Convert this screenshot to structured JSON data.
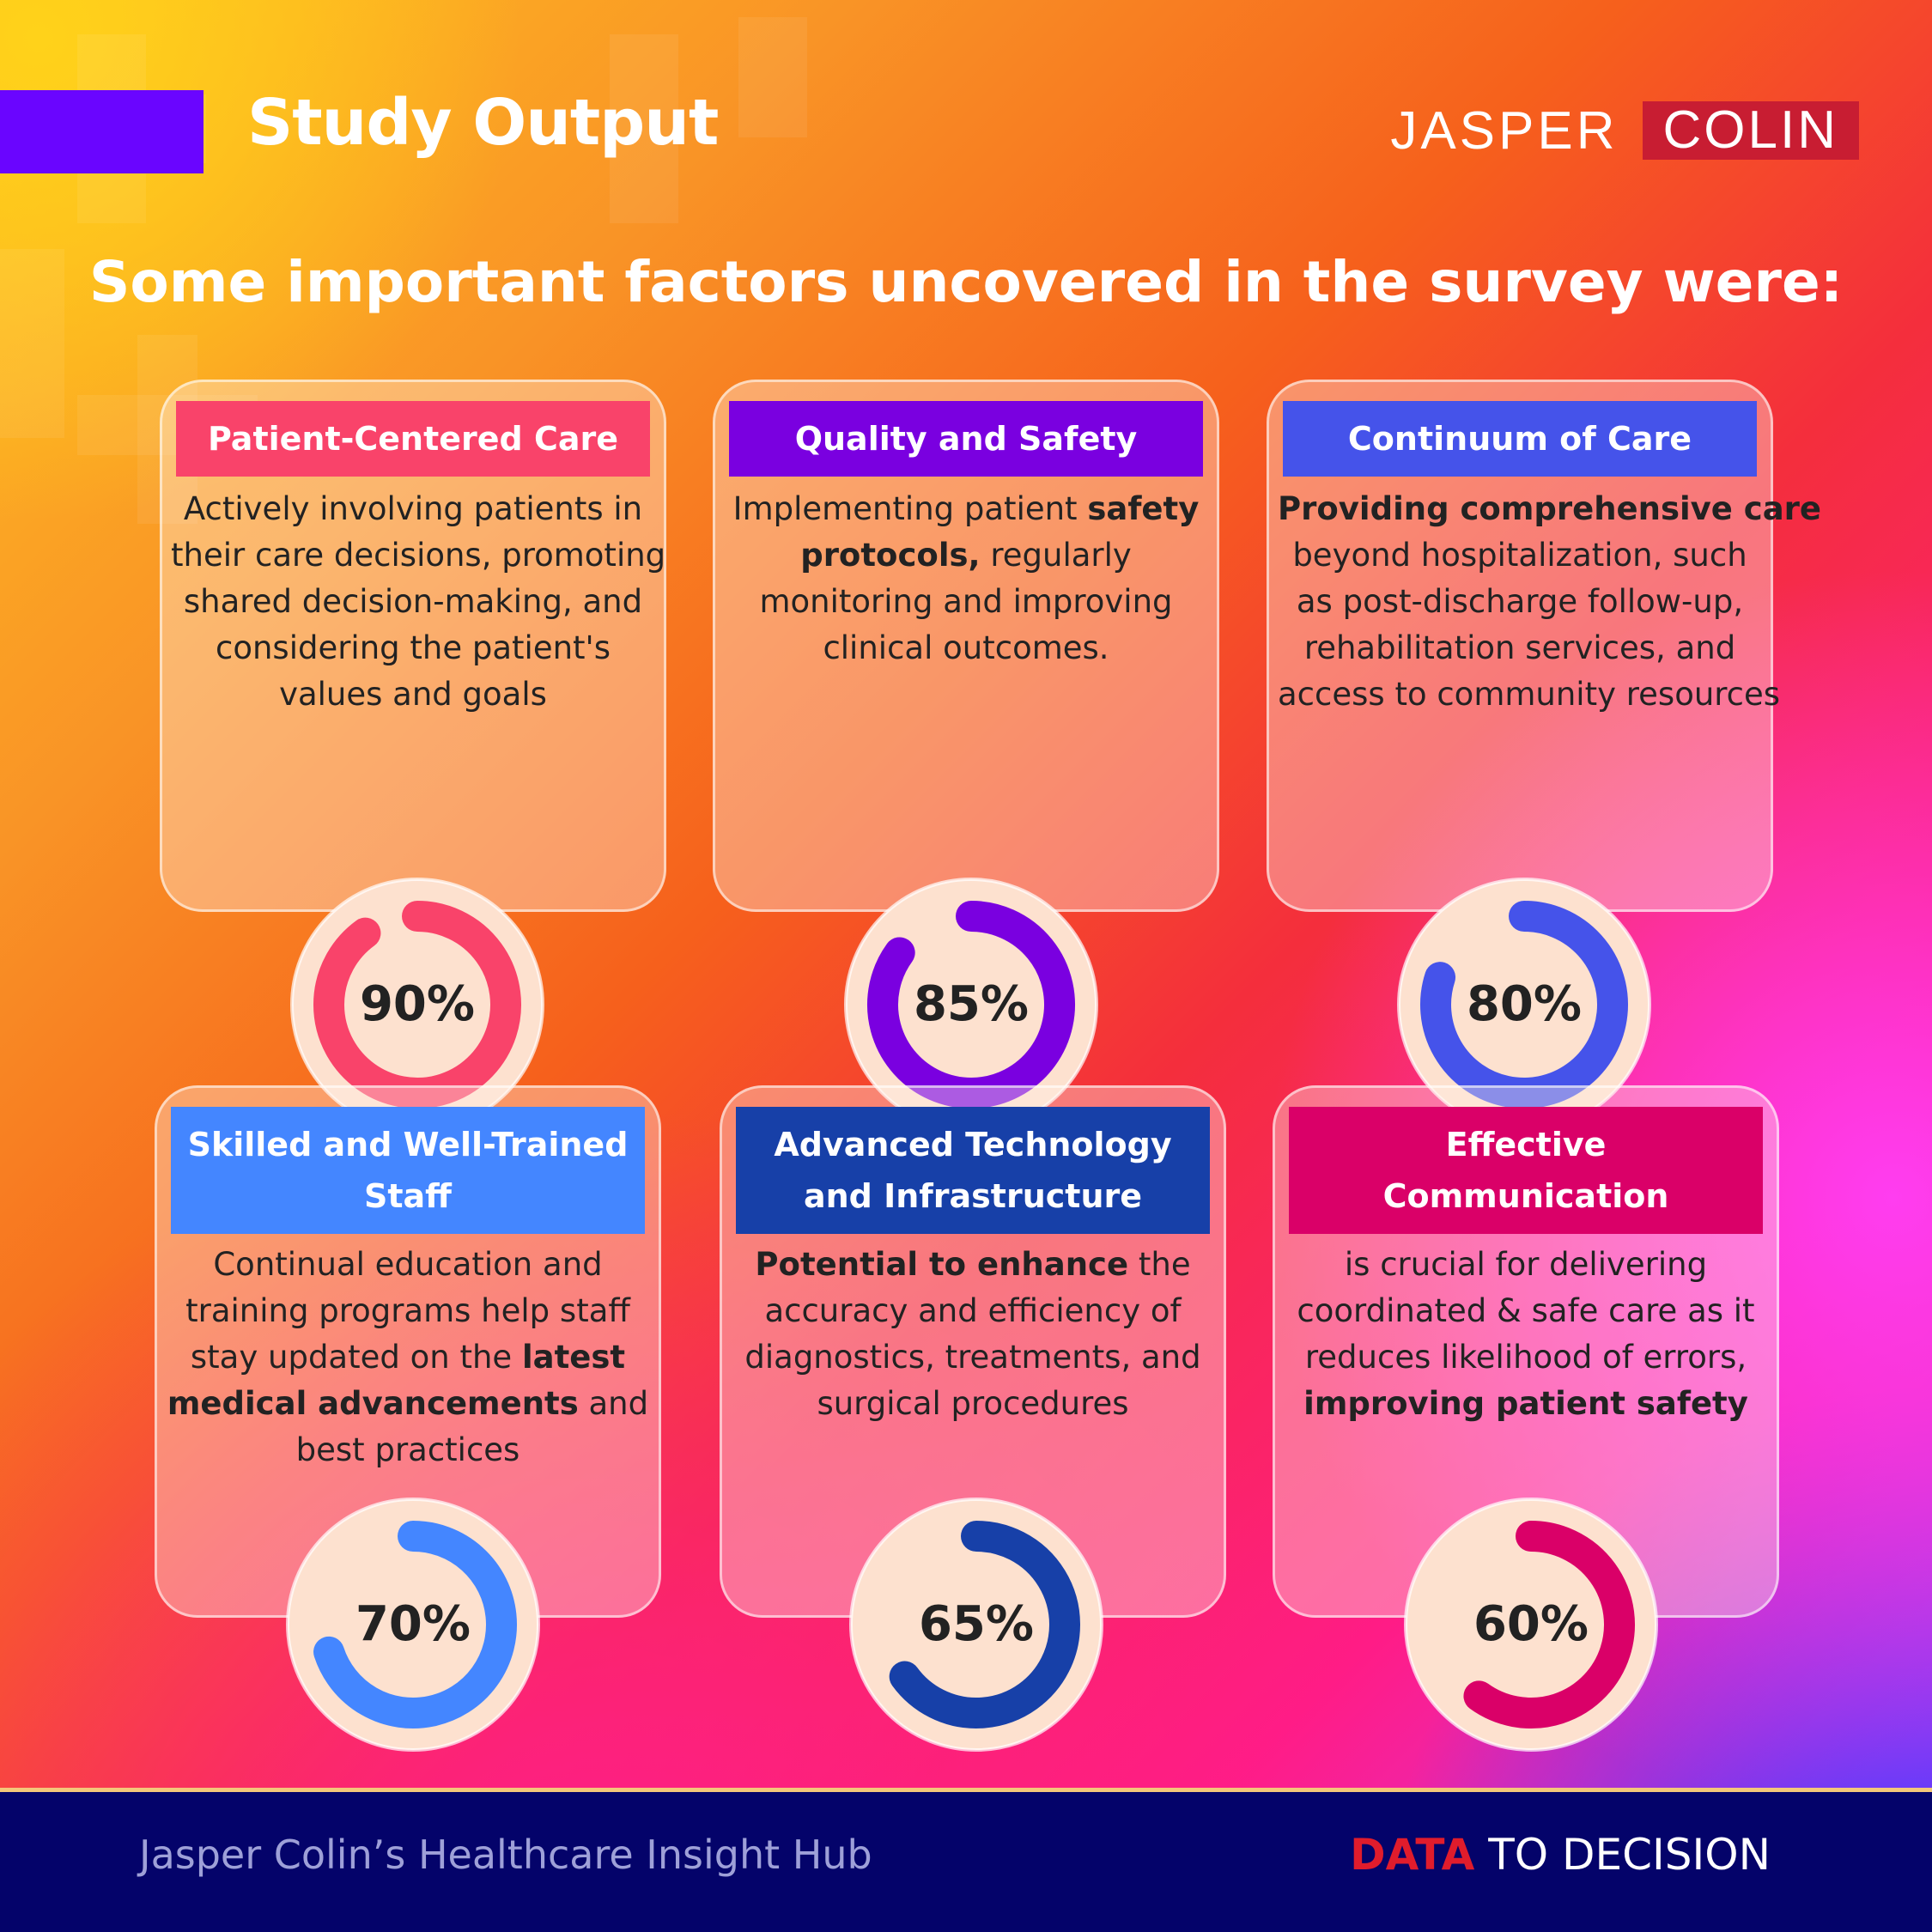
{
  "header": {
    "title": "Study Output",
    "logo_left": "JASPER",
    "logo_right": "COLIN"
  },
  "headline": "Some important factors uncovered in the survey were:",
  "cards": [
    {
      "title_lines": [
        "Patient-Centered Care"
      ],
      "header_color": "#f9436a",
      "accent_color": "#f9436a",
      "body_lines": [
        [
          {
            "t": "Actively involving patients in"
          }
        ],
        [
          {
            "t": "their care decisions, promoting"
          }
        ],
        [
          {
            "t": "shared decision-making, and"
          }
        ],
        [
          {
            "t": "considering the patient's"
          }
        ],
        [
          {
            "t": "values and goals"
          }
        ]
      ],
      "percent": 90,
      "percent_label": "90%"
    },
    {
      "title_lines": [
        "Quality and Safety"
      ],
      "header_color": "#7a00e0",
      "accent_color": "#7a00e0",
      "body_lines": [
        [
          {
            "t": "Implementing patient "
          },
          {
            "t": "safety",
            "b": true
          }
        ],
        [
          {
            "t": "protocols,",
            "b": true
          },
          {
            "t": " regularly"
          }
        ],
        [
          {
            "t": "monitoring and improving"
          }
        ],
        [
          {
            "t": "clinical outcomes."
          }
        ]
      ],
      "percent": 85,
      "percent_label": "85%"
    },
    {
      "title_lines": [
        "Continuum of Care"
      ],
      "header_color": "#4553ea",
      "accent_color": "#4553ea",
      "body_lines": [
        [
          {
            "t": "Providing comprehensive care",
            "b": true
          }
        ],
        [
          {
            "t": "beyond hospitalization, such"
          }
        ],
        [
          {
            "t": "as post-discharge follow-up,"
          }
        ],
        [
          {
            "t": "rehabilitation services, and"
          }
        ],
        [
          {
            "t": "access to community resources"
          }
        ]
      ],
      "percent": 80,
      "percent_label": "80%"
    },
    {
      "title_lines": [
        "Skilled and Well-Trained",
        "Staff"
      ],
      "header_color": "#4486ff",
      "accent_color": "#4486ff",
      "body_lines": [
        [
          {
            "t": "Continual education and"
          }
        ],
        [
          {
            "t": "training programs help staff"
          }
        ],
        [
          {
            "t": "stay updated on the "
          },
          {
            "t": "latest",
            "b": true
          }
        ],
        [
          {
            "t": "medical advancements",
            "b": true
          },
          {
            "t": " and"
          }
        ],
        [
          {
            "t": "best practices"
          }
        ]
      ],
      "percent": 70,
      "percent_label": "70%"
    },
    {
      "title_lines": [
        "Advanced Technology",
        "and Infrastructure"
      ],
      "header_color": "#1740a8",
      "accent_color": "#1740a8",
      "body_lines": [
        [
          {
            "t": "Potential to enhance",
            "b": true
          },
          {
            "t": " the"
          }
        ],
        [
          {
            "t": "accuracy and efficiency of"
          }
        ],
        [
          {
            "t": "diagnostics, treatments, and"
          }
        ],
        [
          {
            "t": "surgical procedures"
          }
        ]
      ],
      "percent": 65,
      "percent_label": "65%"
    },
    {
      "title_lines": [
        "Effective",
        "Communication"
      ],
      "header_color": "#da0068",
      "accent_color": "#da0068",
      "body_lines": [
        [
          {
            "t": "is crucial for delivering"
          }
        ],
        [
          {
            "t": "coordinated & safe care as it"
          }
        ],
        [
          {
            "t": "reduces likelihood of errors,"
          }
        ],
        [
          {
            "t": "improving patient safety",
            "b": true
          }
        ]
      ],
      "percent": 60,
      "percent_label": "60%"
    }
  ],
  "footer": {
    "left": "Jasper Colin’s Healthcare Insight Hub",
    "right_accent": "DATA",
    "right_rest": " TO DECISION"
  }
}
